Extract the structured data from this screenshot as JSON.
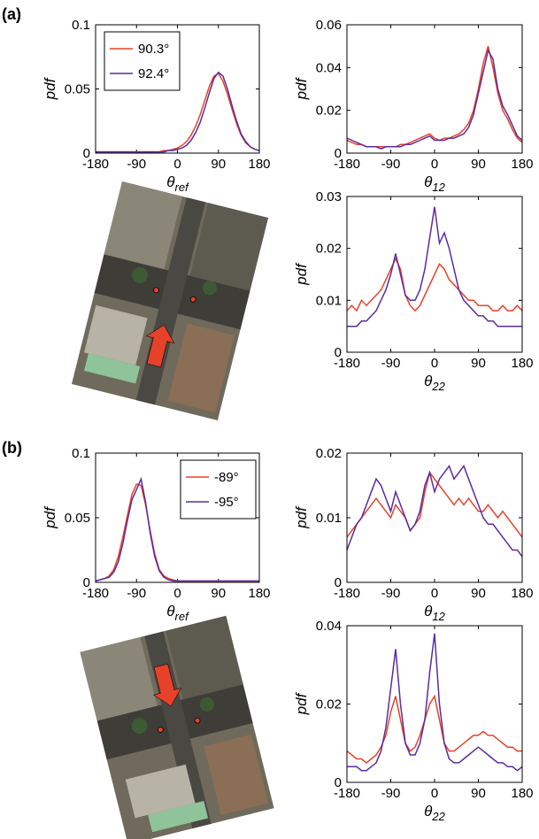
{
  "panel_labels": [
    "(a)",
    "(b)"
  ],
  "chart_data": [
    {
      "type": "line",
      "ylabel": "pdf",
      "xlabel": [
        "θ",
        "ref"
      ],
      "legend": "upper-left",
      "x": [
        -180,
        -170,
        -160,
        -150,
        -140,
        -130,
        -120,
        -110,
        -100,
        -90,
        -80,
        -70,
        -60,
        -50,
        -40,
        -30,
        -20,
        -10,
        0,
        10,
        20,
        30,
        40,
        50,
        60,
        70,
        80,
        90,
        100,
        110,
        120,
        130,
        140,
        150,
        160,
        170,
        180
      ],
      "xlim": [
        -180,
        180
      ],
      "xticks": [
        -180,
        -90,
        0,
        90,
        180
      ],
      "ylim": [
        0,
        0.1
      ],
      "yticks": [
        0,
        0.05,
        0.1
      ],
      "series": [
        {
          "name": "90.3°",
          "color": "#e8412a",
          "values": [
            0.001,
            0.001,
            0.001,
            0.001,
            0.001,
            0.001,
            0.001,
            0.001,
            0.001,
            0.001,
            0.001,
            0.001,
            0.001,
            0.001,
            0.001,
            0.002,
            0.002,
            0.003,
            0.004,
            0.006,
            0.009,
            0.014,
            0.021,
            0.03,
            0.041,
            0.052,
            0.06,
            0.062,
            0.056,
            0.046,
            0.034,
            0.023,
            0.014,
            0.008,
            0.005,
            0.003,
            0.002
          ]
        },
        {
          "name": "92.4°",
          "color": "#5a2ca0",
          "values": [
            0.001,
            0.001,
            0.001,
            0.001,
            0.001,
            0.001,
            0.001,
            0.001,
            0.001,
            0.001,
            0.001,
            0.001,
            0.001,
            0.001,
            0.001,
            0.001,
            0.002,
            0.002,
            0.003,
            0.004,
            0.006,
            0.01,
            0.016,
            0.024,
            0.035,
            0.047,
            0.058,
            0.063,
            0.06,
            0.05,
            0.037,
            0.025,
            0.015,
            0.009,
            0.005,
            0.003,
            0.002
          ]
        }
      ]
    },
    {
      "type": "line",
      "ylabel": "pdf",
      "xlabel": [
        "θ",
        "12"
      ],
      "x": [
        -180,
        -170,
        -160,
        -150,
        -140,
        -130,
        -120,
        -110,
        -100,
        -90,
        -80,
        -70,
        -60,
        -50,
        -40,
        -30,
        -20,
        -10,
        0,
        10,
        20,
        30,
        40,
        50,
        60,
        70,
        80,
        90,
        100,
        110,
        120,
        130,
        140,
        150,
        160,
        170,
        180
      ],
      "xlim": [
        -180,
        180
      ],
      "xticks": [
        -180,
        -90,
        0,
        90,
        180
      ],
      "ylim": [
        0,
        0.06
      ],
      "yticks": [
        0,
        0.02,
        0.04,
        0.06
      ],
      "series": [
        {
          "color": "#e8412a",
          "values": [
            0.006,
            0.005,
            0.004,
            0.004,
            0.003,
            0.003,
            0.003,
            0.003,
            0.003,
            0.003,
            0.003,
            0.004,
            0.004,
            0.005,
            0.006,
            0.007,
            0.008,
            0.009,
            0.007,
            0.006,
            0.007,
            0.007,
            0.008,
            0.009,
            0.011,
            0.014,
            0.02,
            0.03,
            0.042,
            0.05,
            0.04,
            0.028,
            0.02,
            0.016,
            0.011,
            0.007,
            0.005
          ]
        },
        {
          "color": "#5a2ca0",
          "values": [
            0.007,
            0.006,
            0.005,
            0.004,
            0.003,
            0.003,
            0.003,
            0.002,
            0.003,
            0.003,
            0.003,
            0.003,
            0.004,
            0.004,
            0.005,
            0.006,
            0.007,
            0.008,
            0.006,
            0.006,
            0.006,
            0.007,
            0.007,
            0.008,
            0.009,
            0.012,
            0.018,
            0.028,
            0.038,
            0.048,
            0.044,
            0.03,
            0.022,
            0.018,
            0.013,
            0.008,
            0.006
          ]
        }
      ]
    },
    {
      "type": "line",
      "ylabel": "pdf",
      "xlabel": [
        "θ",
        "22"
      ],
      "x": [
        -180,
        -170,
        -160,
        -150,
        -140,
        -130,
        -120,
        -110,
        -100,
        -90,
        -80,
        -70,
        -60,
        -50,
        -40,
        -30,
        -20,
        -10,
        0,
        10,
        20,
        30,
        40,
        50,
        60,
        70,
        80,
        90,
        100,
        110,
        120,
        130,
        140,
        150,
        160,
        170,
        180
      ],
      "xlim": [
        -180,
        180
      ],
      "xticks": [
        -180,
        -90,
        0,
        90,
        180
      ],
      "ylim": [
        0,
        0.03
      ],
      "yticks": [
        0,
        0.01,
        0.02,
        0.03
      ],
      "series": [
        {
          "color": "#e8412a",
          "values": [
            0.008,
            0.009,
            0.008,
            0.01,
            0.009,
            0.01,
            0.011,
            0.012,
            0.014,
            0.016,
            0.018,
            0.016,
            0.011,
            0.009,
            0.008,
            0.009,
            0.011,
            0.013,
            0.015,
            0.017,
            0.016,
            0.014,
            0.013,
            0.012,
            0.011,
            0.01,
            0.01,
            0.009,
            0.009,
            0.009,
            0.008,
            0.008,
            0.009,
            0.008,
            0.008,
            0.009,
            0.008
          ]
        },
        {
          "color": "#5a2ca0",
          "values": [
            0.005,
            0.005,
            0.005,
            0.006,
            0.006,
            0.007,
            0.008,
            0.01,
            0.012,
            0.015,
            0.019,
            0.015,
            0.011,
            0.01,
            0.01,
            0.012,
            0.016,
            0.022,
            0.028,
            0.021,
            0.023,
            0.02,
            0.016,
            0.012,
            0.01,
            0.009,
            0.008,
            0.007,
            0.007,
            0.006,
            0.006,
            0.005,
            0.005,
            0.005,
            0.005,
            0.005,
            0.005
          ]
        }
      ]
    },
    {
      "type": "line",
      "ylabel": "pdf",
      "xlabel": [
        "θ",
        "ref"
      ],
      "legend": "upper-right",
      "x": [
        -180,
        -170,
        -160,
        -150,
        -140,
        -130,
        -120,
        -110,
        -100,
        -90,
        -80,
        -70,
        -60,
        -50,
        -40,
        -30,
        -20,
        -10,
        0,
        10,
        20,
        30,
        40,
        50,
        60,
        70,
        80,
        90,
        100,
        110,
        120,
        130,
        140,
        150,
        160,
        170,
        180
      ],
      "xlim": [
        -180,
        180
      ],
      "xticks": [
        -180,
        -90,
        0,
        90,
        180
      ],
      "ylim": [
        0,
        0.1
      ],
      "yticks": [
        0,
        0.05,
        0.1
      ],
      "series": [
        {
          "name": "-89°",
          "color": "#e8412a",
          "values": [
            0.001,
            0.002,
            0.003,
            0.005,
            0.01,
            0.02,
            0.035,
            0.052,
            0.068,
            0.076,
            0.075,
            0.06,
            0.04,
            0.022,
            0.01,
            0.005,
            0.003,
            0.002,
            0.001,
            0.001,
            0.001,
            0.001,
            0.001,
            0.001,
            0.001,
            0.001,
            0.001,
            0.001,
            0.001,
            0.001,
            0.001,
            0.001,
            0.001,
            0.001,
            0.001,
            0.001,
            0.001
          ]
        },
        {
          "name": "-95°",
          "color": "#5a2ca0",
          "values": [
            0.001,
            0.002,
            0.003,
            0.004,
            0.008,
            0.016,
            0.03,
            0.048,
            0.064,
            0.072,
            0.08,
            0.062,
            0.038,
            0.02,
            0.009,
            0.004,
            0.002,
            0.001,
            0.001,
            0.001,
            0.001,
            0.001,
            0.001,
            0.001,
            0.001,
            0.001,
            0.001,
            0.001,
            0.001,
            0.001,
            0.001,
            0.001,
            0.001,
            0.001,
            0.001,
            0.001,
            0.001
          ]
        }
      ]
    },
    {
      "type": "line",
      "ylabel": "pdf",
      "xlabel": [
        "θ",
        "12"
      ],
      "x": [
        -180,
        -170,
        -160,
        -150,
        -140,
        -130,
        -120,
        -110,
        -100,
        -90,
        -80,
        -70,
        -60,
        -50,
        -40,
        -30,
        -20,
        -10,
        0,
        10,
        20,
        30,
        40,
        50,
        60,
        70,
        80,
        90,
        100,
        110,
        120,
        130,
        140,
        150,
        160,
        170,
        180
      ],
      "xlim": [
        -180,
        180
      ],
      "xticks": [
        -180,
        -90,
        0,
        90,
        180
      ],
      "ylim": [
        0,
        0.02
      ],
      "yticks": [
        0,
        0.01,
        0.02
      ],
      "series": [
        {
          "color": "#e8412a",
          "values": [
            0.007,
            0.008,
            0.009,
            0.01,
            0.011,
            0.012,
            0.013,
            0.012,
            0.011,
            0.01,
            0.012,
            0.011,
            0.01,
            0.008,
            0.009,
            0.01,
            0.014,
            0.017,
            0.016,
            0.015,
            0.014,
            0.013,
            0.012,
            0.013,
            0.012,
            0.013,
            0.012,
            0.011,
            0.011,
            0.012,
            0.011,
            0.01,
            0.011,
            0.01,
            0.009,
            0.008,
            0.007
          ]
        },
        {
          "color": "#5a2ca0",
          "values": [
            0.005,
            0.007,
            0.009,
            0.01,
            0.012,
            0.014,
            0.016,
            0.015,
            0.013,
            0.011,
            0.014,
            0.012,
            0.01,
            0.008,
            0.009,
            0.011,
            0.015,
            0.017,
            0.014,
            0.016,
            0.017,
            0.018,
            0.016,
            0.017,
            0.018,
            0.016,
            0.014,
            0.012,
            0.01,
            0.009,
            0.009,
            0.008,
            0.007,
            0.006,
            0.005,
            0.005,
            0.004
          ]
        }
      ]
    },
    {
      "type": "line",
      "ylabel": "pdf",
      "xlabel": [
        "θ",
        "22"
      ],
      "x": [
        -180,
        -170,
        -160,
        -150,
        -140,
        -130,
        -120,
        -110,
        -100,
        -90,
        -80,
        -70,
        -60,
        -50,
        -40,
        -30,
        -20,
        -10,
        0,
        10,
        20,
        30,
        40,
        50,
        60,
        70,
        80,
        90,
        100,
        110,
        120,
        130,
        140,
        150,
        160,
        170,
        180
      ],
      "xlim": [
        -180,
        180
      ],
      "xticks": [
        -180,
        -90,
        0,
        90,
        180
      ],
      "ylim": [
        0,
        0.04
      ],
      "yticks": [
        0,
        0.02,
        0.04
      ],
      "series": [
        {
          "color": "#e8412a",
          "values": [
            0.008,
            0.007,
            0.006,
            0.006,
            0.005,
            0.006,
            0.007,
            0.009,
            0.012,
            0.018,
            0.022,
            0.016,
            0.01,
            0.008,
            0.009,
            0.012,
            0.016,
            0.02,
            0.022,
            0.016,
            0.01,
            0.008,
            0.008,
            0.009,
            0.01,
            0.011,
            0.012,
            0.012,
            0.013,
            0.012,
            0.012,
            0.011,
            0.01,
            0.009,
            0.009,
            0.008,
            0.008
          ]
        },
        {
          "color": "#5a2ca0",
          "values": [
            0.004,
            0.004,
            0.004,
            0.003,
            0.003,
            0.004,
            0.005,
            0.008,
            0.014,
            0.024,
            0.034,
            0.02,
            0.01,
            0.007,
            0.007,
            0.01,
            0.016,
            0.028,
            0.038,
            0.02,
            0.01,
            0.006,
            0.005,
            0.005,
            0.006,
            0.007,
            0.008,
            0.009,
            0.008,
            0.007,
            0.006,
            0.005,
            0.005,
            0.004,
            0.004,
            0.003,
            0.004
          ]
        }
      ]
    }
  ]
}
